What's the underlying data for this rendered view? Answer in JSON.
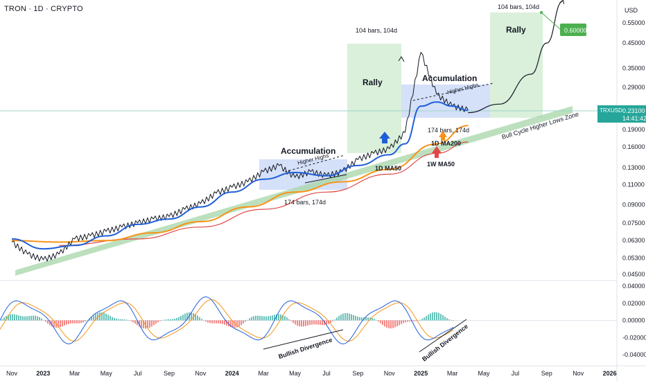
{
  "header": {
    "symbol_line": "TRON · 1D · CRYPTO",
    "currency": "USD"
  },
  "price_tag": {
    "symbol": "TRXUSD",
    "value": "0.23100",
    "countdown": "14:41:42"
  },
  "colors": {
    "price": "#131722",
    "ma50": "#1f5fd6",
    "ma200": "#f7931a",
    "weekly_ma50": "#e04848",
    "zone": "#a5d6a7",
    "box_blue": "#c7d6f7",
    "box_green": "#d4edd5",
    "hist_pos": "#26a69a",
    "hist_neg": "#ef5350",
    "target": "#4caf50"
  },
  "annotations": {
    "accumulation_1": "Accumulation",
    "higher_highs_1": "Higher Highs",
    "bars_174_1": "174 bars, 174d",
    "rally_1": "Rally",
    "bars_104_1": "104 bars, 104d",
    "accumulation_2": "Accumulation",
    "higher_highs_2": "Higher Highs",
    "bars_174_2": "174 bars, 174d",
    "rally_2": "Rally",
    "bars_104_2": "104 bars, 104d",
    "target": "0.60000",
    "ma50_1d": "1D MA50",
    "ma200_1d": "1D MA200",
    "ma50_1w": "1W MA50",
    "zone": "Bull Cycle Higher Lows Zone",
    "bullish_div_1": "Bullish Divergence",
    "bullish_div_2": "Bullish Divergence"
  },
  "chart_data": {
    "type": "line",
    "title": "TRON · 1D · CRYPTO",
    "scale": "log",
    "ylim": [
      0.044,
      0.68
    ],
    "y_ticks": [
      "0.55000",
      "0.45000",
      "0.35000",
      "0.29000",
      "0.23100",
      "0.19000",
      "0.16000",
      "0.13000",
      "0.11000",
      "0.09000",
      "0.07500",
      "0.06300",
      "0.05300",
      "0.04500"
    ],
    "x_ticks": [
      "Nov",
      "2023",
      "Mar",
      "May",
      "Jul",
      "Sep",
      "Nov",
      "2024",
      "Mar",
      "May",
      "Jul",
      "Sep",
      "Nov",
      "2025",
      "Mar",
      "May",
      "Jul",
      "Sep",
      "Nov",
      "2026"
    ],
    "x_bold_ticks": [
      "2023",
      "2024",
      "2025",
      "2026"
    ],
    "series": [
      {
        "name": "price",
        "x": [
          "2022-10",
          "2022-11",
          "2022-12",
          "2023-01",
          "2023-02",
          "2023-03",
          "2023-04",
          "2023-05",
          "2023-06",
          "2023-07",
          "2023-08",
          "2023-09",
          "2023-10",
          "2023-11",
          "2023-12",
          "2024-01",
          "2024-02",
          "2024-03",
          "2024-04",
          "2024-05",
          "2024-06",
          "2024-07",
          "2024-08",
          "2024-09",
          "2024-10",
          "2024-11",
          "2024-12",
          "2025-01",
          "2025-02",
          "2025-03"
        ],
        "values": [
          0.062,
          0.055,
          0.052,
          0.055,
          0.064,
          0.066,
          0.069,
          0.072,
          0.075,
          0.078,
          0.08,
          0.086,
          0.091,
          0.101,
          0.107,
          0.113,
          0.125,
          0.133,
          0.118,
          0.125,
          0.12,
          0.125,
          0.141,
          0.15,
          0.157,
          0.185,
          0.41,
          0.27,
          0.24,
          0.231
        ]
      },
      {
        "name": "1D MA50",
        "x": [
          "2022-10",
          "2022-12",
          "2023-02",
          "2023-04",
          "2023-06",
          "2023-08",
          "2023-10",
          "2023-12",
          "2024-02",
          "2024-04",
          "2024-06",
          "2024-08",
          "2024-10",
          "2024-11",
          "2024-12",
          "2025-01",
          "2025-02",
          "2025-03"
        ],
        "values": [
          0.064,
          0.058,
          0.06,
          0.066,
          0.074,
          0.078,
          0.088,
          0.102,
          0.116,
          0.124,
          0.12,
          0.133,
          0.148,
          0.165,
          0.24,
          0.25,
          0.24,
          0.23
        ]
      },
      {
        "name": "1D MA200",
        "x": [
          "2022-10",
          "2023-01",
          "2023-04",
          "2023-07",
          "2023-10",
          "2024-01",
          "2024-04",
          "2024-07",
          "2024-10",
          "2025-01",
          "2025-03"
        ],
        "values": [
          0.063,
          0.062,
          0.063,
          0.068,
          0.076,
          0.088,
          0.102,
          0.113,
          0.128,
          0.165,
          0.198
        ]
      },
      {
        "name": "1W MA50",
        "x": [
          "2023-01",
          "2023-06",
          "2023-10",
          "2024-02",
          "2024-06",
          "2024-10",
          "2025-01",
          "2025-03"
        ],
        "values": [
          0.06,
          0.064,
          0.072,
          0.086,
          0.102,
          0.122,
          0.15,
          0.168
        ]
      },
      {
        "name": "projection",
        "x": [
          "2025-03",
          "2025-05",
          "2025-07",
          "2025-08",
          "2025-09"
        ],
        "values": [
          0.225,
          0.245,
          0.33,
          0.45,
          0.68
        ]
      }
    ],
    "macd": {
      "ylim": [
        -0.048,
        0.044
      ],
      "y_ticks": [
        "0.04000",
        "0.02000",
        "0.00000",
        "-0.02000",
        "-0.04000"
      ]
    }
  }
}
